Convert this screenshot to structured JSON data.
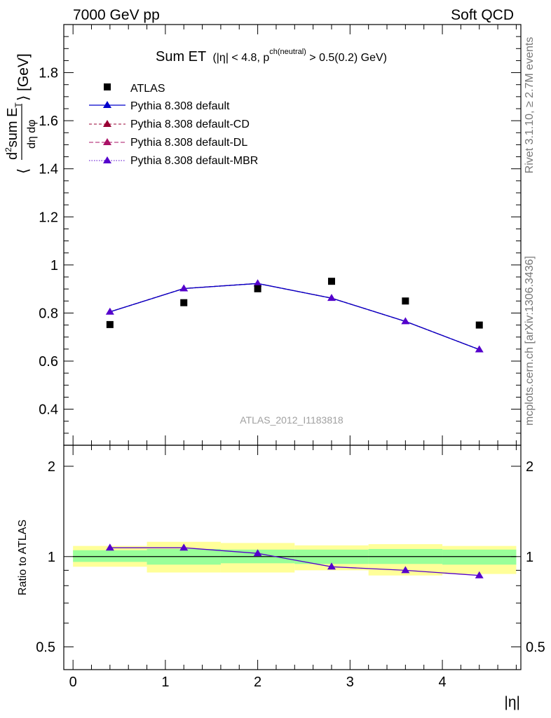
{
  "header": {
    "left": "7000 GeV pp",
    "right": "Soft QCD"
  },
  "side_labels": {
    "rivet": "Rivet 3.1.10, ≥ 2.7M events",
    "mcplots": "mcplots.cern.ch [arXiv:1306.3436]"
  },
  "colors": {
    "atlas": "#000000",
    "default": "#0000cc",
    "default_cd": "#990033",
    "default_dl": "#aa1166",
    "default_mbr": "#5500cc",
    "band_inner": "#99ff99",
    "band_outer": "#ffff99"
  },
  "chart_data": [
    {
      "type": "scatter",
      "title": "Sum ET",
      "title_cuts": {
        "p1": "(|η| < 4.8, p",
        "sup": "ch(neutral)",
        "p2": " > 0.5(0.2) GeV)"
      },
      "ylabel": {
        "pre": "⟨",
        "num_d": "d",
        "num_sup": "2",
        "num_rest": "sum E",
        "num_sub": "T",
        "den": "dη dφ",
        "post": "⟩ [GeV]"
      },
      "watermark": "ATLAS_2012_I1183818",
      "xlim": [
        -0.1,
        4.85
      ],
      "ylim": [
        0.25,
        2.0
      ],
      "y_ticks": [
        0.4,
        0.6,
        0.8,
        1,
        1.2,
        1.4,
        1.6,
        1.8
      ],
      "y_tick_labels": [
        "0.4",
        "0.6",
        "0.8",
        "1",
        "1.2",
        "1.4",
        "1.6",
        "1.8"
      ],
      "legend_position": "top-left",
      "series": [
        {
          "name": "ATLAS",
          "marker": "square",
          "x": [
            0.4,
            1.2,
            2.0,
            2.8,
            3.6,
            4.4
          ],
          "y": [
            0.752,
            0.843,
            0.901,
            0.932,
            0.85,
            0.75
          ]
        },
        {
          "name": "Pythia 8.308 default",
          "marker": "triangle",
          "line": "solid",
          "x": [
            0.4,
            1.2,
            2.0,
            2.8,
            3.6,
            4.4
          ],
          "y": [
            0.805,
            0.902,
            0.923,
            0.862,
            0.765,
            0.648
          ]
        },
        {
          "name": "Pythia 8.308 default-CD",
          "marker": "triangle",
          "line": "dashed",
          "x": [
            0.4,
            1.2,
            2.0,
            2.8,
            3.6,
            4.4
          ],
          "y": [
            0.805,
            0.902,
            0.923,
            0.862,
            0.765,
            0.648
          ]
        },
        {
          "name": "Pythia 8.308 default-DL",
          "marker": "triangle",
          "line": "dashed",
          "x": [
            0.4,
            1.2,
            2.0,
            2.8,
            3.6,
            4.4
          ],
          "y": [
            0.805,
            0.902,
            0.923,
            0.862,
            0.765,
            0.648
          ]
        },
        {
          "name": "Pythia 8.308 default-MBR",
          "marker": "triangle",
          "line": "dotted",
          "x": [
            0.4,
            1.2,
            2.0,
            2.8,
            3.6,
            4.4
          ],
          "y": [
            0.805,
            0.902,
            0.923,
            0.862,
            0.765,
            0.648
          ]
        }
      ]
    },
    {
      "type": "line",
      "ylabel": "Ratio to ATLAS",
      "xlabel": "|η|",
      "xlim": [
        -0.1,
        4.85
      ],
      "ylim": [
        0.42,
        2.35
      ],
      "log_y": true,
      "x_ticks": [
        0,
        1,
        2,
        3,
        4
      ],
      "x_tick_labels": [
        "0",
        "1",
        "2",
        "3",
        "4"
      ],
      "y_ticks": [
        0.5,
        1,
        2
      ],
      "y_tick_labels": [
        "0.5",
        "1",
        "2"
      ],
      "bins": [
        [
          0.0,
          0.8
        ],
        [
          0.8,
          1.6
        ],
        [
          1.6,
          2.4
        ],
        [
          2.4,
          3.2
        ],
        [
          3.2,
          4.0
        ],
        [
          4.0,
          4.8
        ]
      ],
      "band_inner": [
        [
          0.96,
          1.05
        ],
        [
          0.94,
          1.06
        ],
        [
          0.95,
          1.055
        ],
        [
          0.945,
          1.055
        ],
        [
          0.945,
          1.06
        ],
        [
          0.94,
          1.055
        ]
      ],
      "band_outer": [
        [
          0.925,
          1.085
        ],
        [
          0.885,
          1.12
        ],
        [
          0.885,
          1.11
        ],
        [
          0.9,
          1.09
        ],
        [
          0.865,
          1.1
        ],
        [
          0.875,
          1.085
        ]
      ],
      "series": [
        {
          "name": "Pythia 8.308 default",
          "x": [
            0.4,
            1.2,
            2.0,
            2.8,
            3.6,
            4.4
          ],
          "y": [
            1.07,
            1.07,
            1.025,
            0.925,
            0.9,
            0.865
          ]
        }
      ]
    }
  ]
}
